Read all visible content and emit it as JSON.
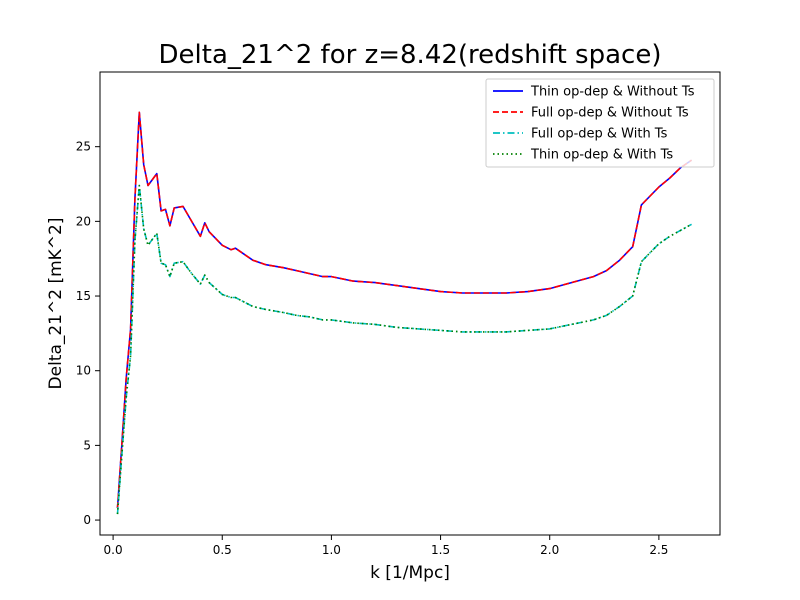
{
  "chart_data": {
    "type": "line",
    "title": "Delta_21^2 for z=8.42(redshift space)",
    "xlabel": "k [1/Mpc]",
    "ylabel": "Delta_21^2 [mK^2]",
    "xlim": [
      -0.06,
      2.78
    ],
    "ylim": [
      -1.0,
      30.0
    ],
    "xticks": [
      0.0,
      0.5,
      1.0,
      1.5,
      2.0,
      2.5
    ],
    "xtick_labels": [
      "0.0",
      "0.5",
      "1.0",
      "1.5",
      "2.0",
      "2.5"
    ],
    "yticks": [
      0,
      5,
      10,
      15,
      20,
      25
    ],
    "ytick_labels": [
      "0",
      "5",
      "10",
      "15",
      "20",
      "25"
    ],
    "grid": false,
    "legend_position": "top-right",
    "x": [
      0.02,
      0.04,
      0.06,
      0.08,
      0.1,
      0.12,
      0.14,
      0.16,
      0.2,
      0.22,
      0.24,
      0.26,
      0.28,
      0.32,
      0.36,
      0.4,
      0.42,
      0.44,
      0.5,
      0.54,
      0.56,
      0.6,
      0.64,
      0.7,
      0.74,
      0.78,
      0.84,
      0.9,
      0.96,
      1.0,
      1.1,
      1.2,
      1.3,
      1.4,
      1.5,
      1.6,
      1.7,
      1.8,
      1.9,
      2.0,
      2.1,
      2.2,
      2.26,
      2.32,
      2.38,
      2.42,
      2.46,
      2.5,
      2.55,
      2.6,
      2.65
    ],
    "series": [
      {
        "name": "Thin op-dep & Without Ts",
        "color": "#0000ff",
        "style": "solid",
        "values": [
          0.8,
          5.0,
          9.5,
          12.8,
          21.5,
          27.3,
          23.8,
          22.4,
          23.2,
          20.7,
          20.8,
          19.7,
          20.9,
          21.0,
          20.0,
          19.0,
          19.9,
          19.3,
          18.4,
          18.1,
          18.2,
          17.8,
          17.4,
          17.1,
          17.0,
          16.9,
          16.7,
          16.5,
          16.3,
          16.3,
          16.0,
          15.9,
          15.7,
          15.5,
          15.3,
          15.2,
          15.2,
          15.2,
          15.3,
          15.5,
          15.9,
          16.3,
          16.7,
          17.4,
          18.3,
          21.1,
          21.7,
          22.3,
          22.9,
          23.6,
          24.1
        ]
      },
      {
        "name": "Full op-dep & Without Ts",
        "color": "#ff0000",
        "style": "dashed",
        "values": [
          0.8,
          5.0,
          9.5,
          12.8,
          21.5,
          27.3,
          23.8,
          22.4,
          23.2,
          20.7,
          20.8,
          19.7,
          20.9,
          21.0,
          20.0,
          19.0,
          19.9,
          19.3,
          18.4,
          18.1,
          18.2,
          17.8,
          17.4,
          17.1,
          17.0,
          16.9,
          16.7,
          16.5,
          16.3,
          16.3,
          16.0,
          15.9,
          15.7,
          15.5,
          15.3,
          15.2,
          15.2,
          15.2,
          15.3,
          15.5,
          15.9,
          16.3,
          16.7,
          17.4,
          18.3,
          21.1,
          21.7,
          22.3,
          22.9,
          23.6,
          24.1
        ]
      },
      {
        "name": "Full op-dep & With Ts",
        "color": "#00bfbf",
        "style": "dashdot",
        "values": [
          0.4,
          4.3,
          8.2,
          11.0,
          18.7,
          22.4,
          19.5,
          18.4,
          19.2,
          17.2,
          17.1,
          16.3,
          17.2,
          17.3,
          16.5,
          15.8,
          16.4,
          15.9,
          15.1,
          14.9,
          14.9,
          14.6,
          14.3,
          14.1,
          14.0,
          13.9,
          13.7,
          13.6,
          13.4,
          13.4,
          13.2,
          13.1,
          12.9,
          12.8,
          12.7,
          12.6,
          12.6,
          12.6,
          12.7,
          12.8,
          13.1,
          13.4,
          13.7,
          14.3,
          15.0,
          17.3,
          17.9,
          18.5,
          19.0,
          19.4,
          19.8
        ]
      },
      {
        "name": "Thin op-dep & With Ts",
        "color": "#008000",
        "style": "dotted",
        "values": [
          0.4,
          4.3,
          8.2,
          11.0,
          18.7,
          22.4,
          19.5,
          18.4,
          19.2,
          17.2,
          17.1,
          16.3,
          17.2,
          17.3,
          16.5,
          15.8,
          16.4,
          15.9,
          15.1,
          14.9,
          14.9,
          14.6,
          14.3,
          14.1,
          14.0,
          13.9,
          13.7,
          13.6,
          13.4,
          13.4,
          13.2,
          13.1,
          12.9,
          12.8,
          12.7,
          12.6,
          12.6,
          12.6,
          12.7,
          12.8,
          13.1,
          13.4,
          13.7,
          14.3,
          15.0,
          17.3,
          17.9,
          18.5,
          19.0,
          19.4,
          19.8
        ]
      }
    ]
  }
}
